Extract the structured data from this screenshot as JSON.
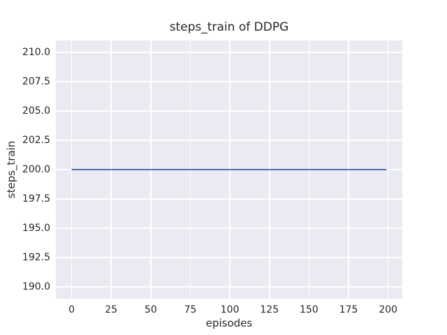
{
  "chart_data": {
    "type": "line",
    "title": "steps_train of DDPG",
    "xlabel": "episodes",
    "ylabel": "steps_train",
    "xlim": [
      -9.95,
      208.95
    ],
    "ylim": [
      189,
      211
    ],
    "xticks": [
      0,
      25,
      50,
      75,
      100,
      125,
      150,
      175,
      200
    ],
    "xtick_labels": [
      "0",
      "25",
      "50",
      "75",
      "100",
      "125",
      "150",
      "175",
      "200"
    ],
    "yticks": [
      190.0,
      192.5,
      195.0,
      197.5,
      200.0,
      202.5,
      205.0,
      207.5,
      210.0
    ],
    "ytick_labels": [
      "190.0",
      "192.5",
      "195.0",
      "197.5",
      "200.0",
      "202.5",
      "205.0",
      "207.5",
      "210.0"
    ],
    "grid": true,
    "legend": "none",
    "series": [
      {
        "name": "steps_train",
        "x": [
          0,
          199
        ],
        "y": [
          200,
          200
        ],
        "color": "#4c72b0",
        "line_width": 2
      }
    ],
    "colors": {
      "figure_background": "#ffffff",
      "plot_background": "#eaeaf2",
      "grid_color": "#ffffff",
      "text_color": "#262626"
    }
  }
}
